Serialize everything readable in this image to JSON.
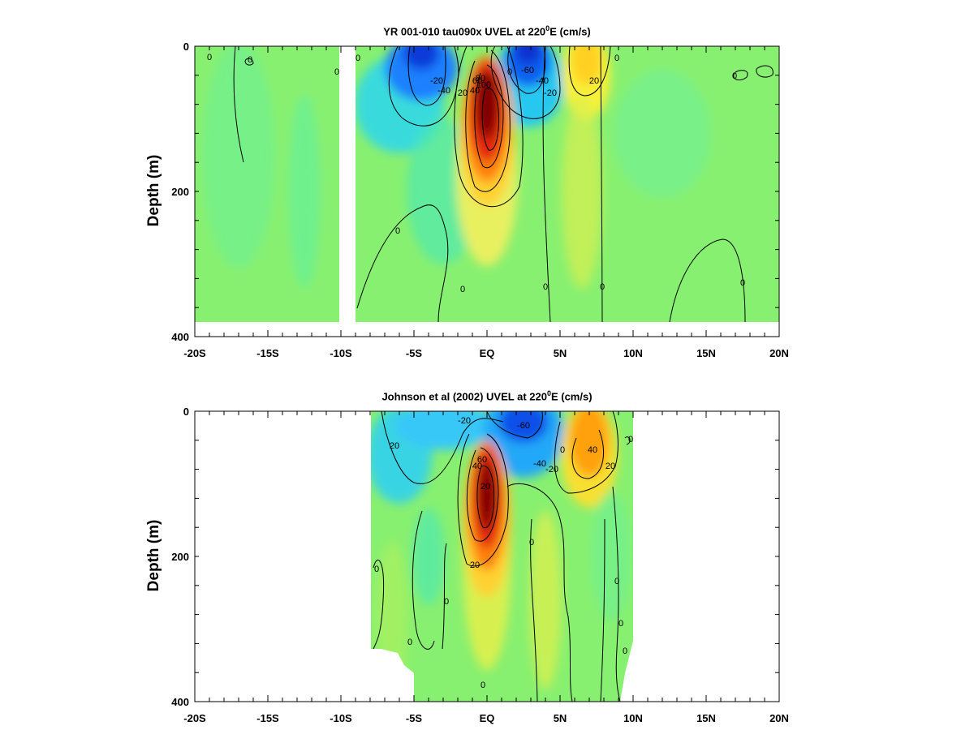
{
  "chart_data": [
    {
      "type": "heatmap",
      "title_text": "YR 001-010 tau090x UVEL at 220",
      "title_sup": "0",
      "title_suffix": "E (cm/s)",
      "ylabel": "Depth (m)",
      "xlim": [
        -20,
        20
      ],
      "ylim": [
        400,
        0
      ],
      "x_ticklabels": [
        "-20S",
        "-15S",
        "-10S",
        "-5S",
        "EQ",
        "5N",
        "10N",
        "15N",
        "20N"
      ],
      "y_ticklabels": [
        "0",
        "200",
        "400"
      ],
      "colorscale": "blue-cyan-green-yellow-red (negative westward, positive eastward)",
      "features": [
        {
          "name": "Equatorial Undercurrent",
          "x": 0,
          "depth": 80,
          "value": 100
        },
        {
          "name": "westward surface flow south",
          "x": -4.5,
          "depth": 10,
          "value": -60
        },
        {
          "name": "westward surface flow north",
          "x": 3,
          "depth": 15,
          "value": -60
        },
        {
          "name": "NECC",
          "x": 7,
          "depth": 40,
          "value": 20
        }
      ],
      "contour_labels": [
        "0",
        "0",
        "0",
        "0",
        "-20",
        "-40",
        "20",
        "40",
        "60",
        "80",
        "100",
        "-60",
        "-40",
        "-20",
        "0",
        "20",
        "0",
        "0",
        "0",
        "0",
        "0",
        "0",
        "0"
      ]
    },
    {
      "type": "heatmap",
      "title_text": "Johnson et al (2002) UVEL at 220",
      "title_sup": "0",
      "title_suffix": "E (cm/s)",
      "ylabel": "Depth (m)",
      "xlim": [
        -20,
        20
      ],
      "ylim": [
        400,
        0
      ],
      "x_ticklabels": [
        "-20S",
        "-15S",
        "-10S",
        "-5S",
        "EQ",
        "5N",
        "10N",
        "15N",
        "20N"
      ],
      "y_ticklabels": [
        "0",
        "200",
        "400"
      ],
      "colorscale": "blue-cyan-green-yellow-red (negative westward, positive eastward)",
      "features": [
        {
          "name": "Equatorial Undercurrent",
          "x": 0,
          "depth": 120,
          "value": 80
        },
        {
          "name": "westward surface flow",
          "x": 2.5,
          "depth": 15,
          "value": -60
        },
        {
          "name": "NECC",
          "x": 7,
          "depth": 40,
          "value": 50
        }
      ],
      "contour_labels": [
        "-20",
        "20",
        "-60",
        "-40",
        "-20",
        "40",
        "20",
        "40",
        "60",
        "20",
        "20",
        "0",
        "0",
        "0",
        "0",
        "0",
        "0",
        "0",
        "0",
        "0",
        "0"
      ]
    }
  ]
}
